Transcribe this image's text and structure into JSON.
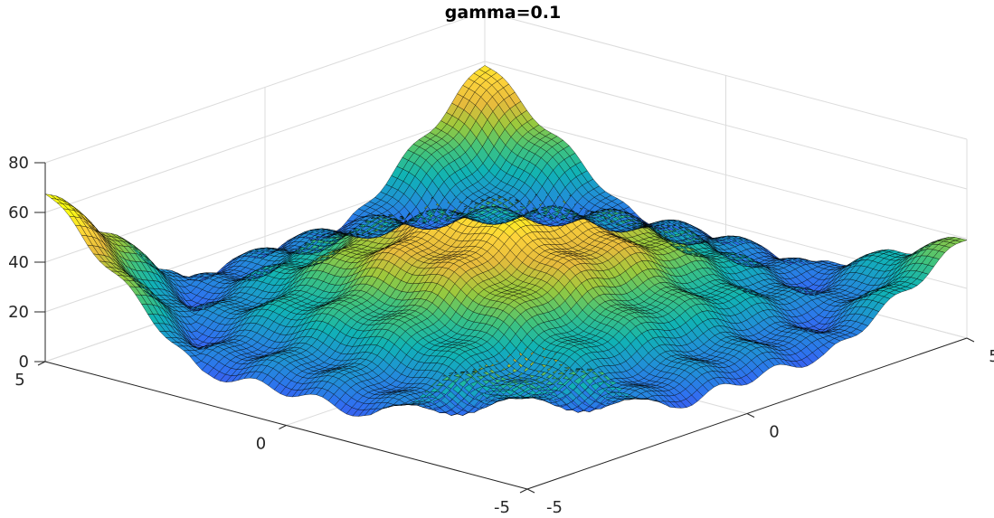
{
  "chart_data": {
    "type": "surface",
    "title": "gamma=0.1",
    "xlabel": "",
    "ylabel": "",
    "zlabel": "",
    "xlim": [
      -5,
      5
    ],
    "ylim": [
      -5,
      5
    ],
    "zlim": [
      0,
      80
    ],
    "x_ticks": [
      "-5",
      "0",
      "5"
    ],
    "y_ticks": [
      "5",
      "0",
      "-5"
    ],
    "z_ticks": [
      "0",
      "20",
      "40",
      "60",
      "80"
    ],
    "grid": true,
    "colormap": "parula",
    "colormap_stops": [
      "#3e26a8",
      "#4746eb",
      "#2f71f0",
      "#1f93d4",
      "#10b3b5",
      "#3fc37e",
      "#9ac93c",
      "#e6bb3c",
      "#fed43a",
      "#f9fb15"
    ],
    "grid_resolution": 81,
    "corner_peak_values": [
      {
        "x": -5,
        "y": -5,
        "z": 52
      },
      {
        "x": 5,
        "y": -5,
        "z": 33
      },
      {
        "x": 5,
        "y": 5,
        "z": 55
      },
      {
        "x": -5,
        "y": 5,
        "z": 61
      }
    ],
    "center_value": 52,
    "trough_value": 3
  }
}
